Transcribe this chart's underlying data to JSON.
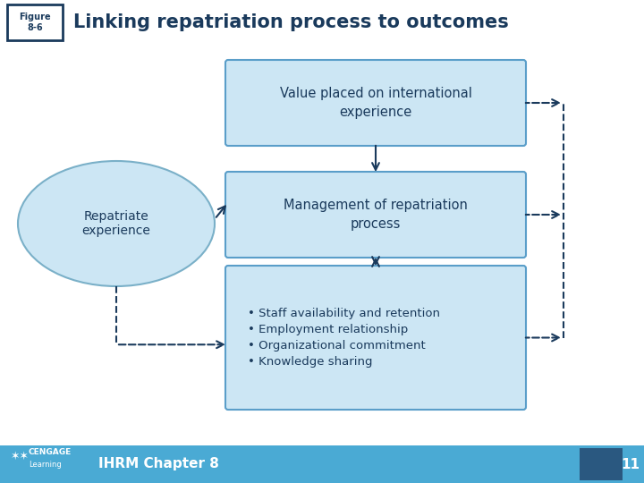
{
  "title": "Linking repatriation process to outcomes",
  "figure_label": "Figure\n8-6",
  "box1_text": "Value placed on international\nexperience",
  "box2_text": "Management of repatriation\nprocess",
  "box3_text": "• Staff availability and retention\n• Employment relationship\n• Organizational commitment\n• Knowledge sharing",
  "ellipse_text": "Repatriate\nexperience",
  "box_fill": "#cce6f4",
  "box_edge": "#5a9ec9",
  "ellipse_fill": "#cce6f4",
  "ellipse_edge": "#7ab0c8",
  "arrow_color": "#1a3a5c",
  "title_color": "#1a3a5c",
  "figure_box_fill": "#ffffff",
  "figure_box_edge": "#1a3a5c",
  "footer_bg": "#4aaad4",
  "footer_text": "IHRM Chapter 8",
  "footer_num": "11",
  "background": "#ffffff",
  "cengage_text": "CENGAGE\nLearning"
}
